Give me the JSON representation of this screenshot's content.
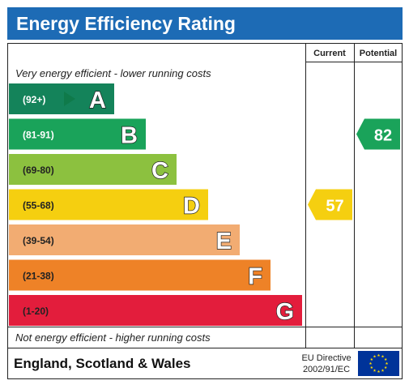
{
  "header": {
    "title": "Energy Efficiency Rating"
  },
  "columns": {
    "current": "Current",
    "potential": "Potential"
  },
  "captions": {
    "top": "Very energy efficient - lower running costs",
    "bottom": "Not energy efficient - higher running costs"
  },
  "chart_data": {
    "type": "bar",
    "categories": [
      "A",
      "B",
      "C",
      "D",
      "E",
      "F",
      "G"
    ],
    "bands": [
      {
        "letter": "A",
        "range": "(92+)",
        "color": "#14835a",
        "range_color": "#ffffff"
      },
      {
        "letter": "B",
        "range": "(81-91)",
        "color": "#1aa35a",
        "range_color": "#ffffff"
      },
      {
        "letter": "C",
        "range": "(69-80)",
        "color": "#8cc13f",
        "range_color": "#222222"
      },
      {
        "letter": "D",
        "range": "(55-68)",
        "color": "#f5cf10",
        "range_color": "#222222"
      },
      {
        "letter": "E",
        "range": "(39-54)",
        "color": "#f2ac72",
        "range_color": "#222222"
      },
      {
        "letter": "F",
        "range": "(21-38)",
        "color": "#ee8227",
        "range_color": "#222222"
      },
      {
        "letter": "G",
        "range": "(1-20)",
        "color": "#e31d3c",
        "range_color": "#222222"
      }
    ],
    "current": {
      "value": 57,
      "band": "D",
      "color": "#f5cf10"
    },
    "potential": {
      "value": 82,
      "band": "B",
      "color": "#1aa35a"
    }
  },
  "footer": {
    "region": "England, Scotland & Wales",
    "directive_line1": "EU Directive",
    "directive_line2": "2002/91/EC",
    "flag_icon": "eu-flag-icon",
    "flag_color": "#003399",
    "star_color": "#ffdd00"
  }
}
